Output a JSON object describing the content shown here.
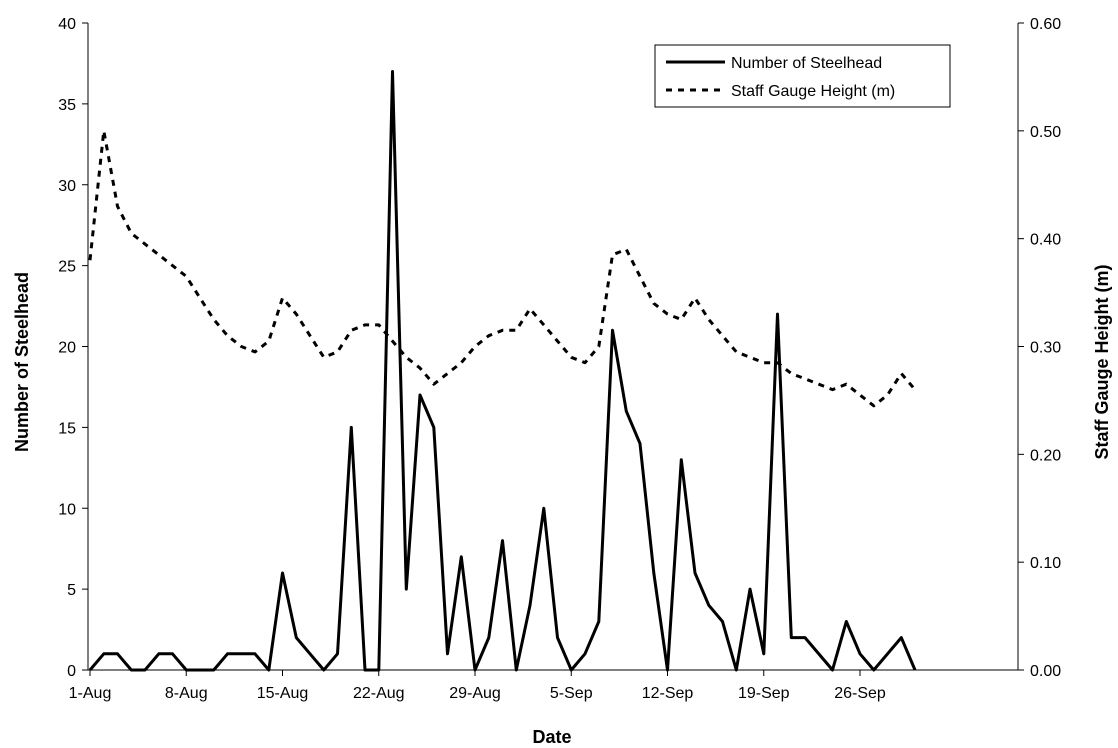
{
  "chart_data": {
    "type": "line",
    "title": "",
    "xlabel": "Date",
    "ylabel_left": "Number of Steelhead",
    "ylabel_right": "Staff Gauge Height (m)",
    "x_tick_labels": [
      "1-Aug",
      "8-Aug",
      "15-Aug",
      "22-Aug",
      "29-Aug",
      "5-Sep",
      "12-Sep",
      "19-Sep",
      "26-Sep"
    ],
    "y_left_ticks": [
      "0",
      "5",
      "10",
      "15",
      "20",
      "25",
      "30",
      "35",
      "40"
    ],
    "y_right_ticks": [
      "0.00",
      "0.10",
      "0.20",
      "0.30",
      "0.40",
      "0.50",
      "0.60"
    ],
    "ylim_left": [
      0,
      40
    ],
    "ylim_right": [
      0,
      0.6
    ],
    "x_range_days": [
      0,
      61
    ],
    "legend_position": "top-right",
    "grid": false,
    "series": [
      {
        "name": "Number of Steelhead",
        "axis": "left",
        "style": "solid",
        "points": [
          [
            0,
            0
          ],
          [
            1,
            1
          ],
          [
            2,
            1
          ],
          [
            3,
            0
          ],
          [
            4,
            0
          ],
          [
            5,
            1
          ],
          [
            6,
            1
          ],
          [
            7,
            0
          ],
          [
            8,
            0
          ],
          [
            9,
            0
          ],
          [
            10,
            1
          ],
          [
            11,
            1
          ],
          [
            12,
            1
          ],
          [
            13,
            0
          ],
          [
            14,
            6
          ],
          [
            15,
            2
          ],
          [
            16,
            1
          ],
          [
            17,
            0
          ],
          [
            18,
            1
          ],
          [
            19,
            15
          ],
          [
            20,
            0
          ],
          [
            21,
            0
          ],
          [
            22,
            37
          ],
          [
            23,
            5
          ],
          [
            24,
            17
          ],
          [
            25,
            15
          ],
          [
            26,
            1
          ],
          [
            27,
            7
          ],
          [
            28,
            0
          ],
          [
            29,
            2
          ],
          [
            30,
            8
          ],
          [
            31,
            0
          ],
          [
            32,
            4
          ],
          [
            33,
            10
          ],
          [
            34,
            2
          ],
          [
            35,
            0
          ],
          [
            36,
            1
          ],
          [
            37,
            3
          ],
          [
            38,
            21
          ],
          [
            39,
            16
          ],
          [
            40,
            14
          ],
          [
            41,
            6
          ],
          [
            42,
            0
          ],
          [
            43,
            13
          ],
          [
            44,
            6
          ],
          [
            45,
            4
          ],
          [
            46,
            3
          ],
          [
            47,
            0
          ],
          [
            48,
            5
          ],
          [
            49,
            1
          ],
          [
            50,
            22
          ],
          [
            51,
            2
          ],
          [
            52,
            2
          ],
          [
            54,
            0
          ],
          [
            55,
            3
          ],
          [
            56,
            1
          ],
          [
            57,
            0
          ],
          [
            59,
            2
          ],
          [
            60,
            0
          ]
        ]
      },
      {
        "name": "Staff Gauge Height (m)",
        "axis": "right",
        "style": "dashed",
        "points": [
          [
            0,
            0.38
          ],
          [
            1,
            0.5
          ],
          [
            2,
            0.43
          ],
          [
            3,
            0.405
          ],
          [
            4,
            0.395
          ],
          [
            5,
            0.385
          ],
          [
            6,
            0.375
          ],
          [
            7,
            0.365
          ],
          [
            8,
            0.345
          ],
          [
            9,
            0.325
          ],
          [
            10,
            0.31
          ],
          [
            11,
            0.3
          ],
          [
            12,
            0.295
          ],
          [
            13,
            0.305
          ],
          [
            14,
            0.345
          ],
          [
            15,
            0.33
          ],
          [
            16,
            0.31
          ],
          [
            17,
            0.29
          ],
          [
            18,
            0.295
          ],
          [
            19,
            0.315
          ],
          [
            20,
            0.32
          ],
          [
            21,
            0.32
          ],
          [
            22,
            0.305
          ],
          [
            23,
            0.29
          ],
          [
            24,
            0.28
          ],
          [
            25,
            0.265
          ],
          [
            26,
            0.275
          ],
          [
            27,
            0.285
          ],
          [
            28,
            0.3
          ],
          [
            29,
            0.31
          ],
          [
            30,
            0.315
          ],
          [
            31,
            0.315
          ],
          [
            32,
            0.335
          ],
          [
            33,
            0.32
          ],
          [
            34,
            0.305
          ],
          [
            35,
            0.29
          ],
          [
            36,
            0.285
          ],
          [
            37,
            0.3
          ],
          [
            38,
            0.385
          ],
          [
            39,
            0.39
          ],
          [
            40,
            0.365
          ],
          [
            41,
            0.34
          ],
          [
            42,
            0.33
          ],
          [
            43,
            0.325
          ],
          [
            44,
            0.345
          ],
          [
            45,
            0.325
          ],
          [
            46,
            0.31
          ],
          [
            47,
            0.295
          ],
          [
            48,
            0.29
          ],
          [
            49,
            0.285
          ],
          [
            50,
            0.285
          ],
          [
            51,
            0.275
          ],
          [
            52,
            0.27
          ],
          [
            53,
            0.265
          ],
          [
            54,
            0.26
          ],
          [
            55,
            0.265
          ],
          [
            56,
            0.255
          ],
          [
            57,
            0.245
          ],
          [
            58,
            0.255
          ],
          [
            59,
            0.275
          ],
          [
            60,
            0.26
          ]
        ]
      }
    ]
  }
}
